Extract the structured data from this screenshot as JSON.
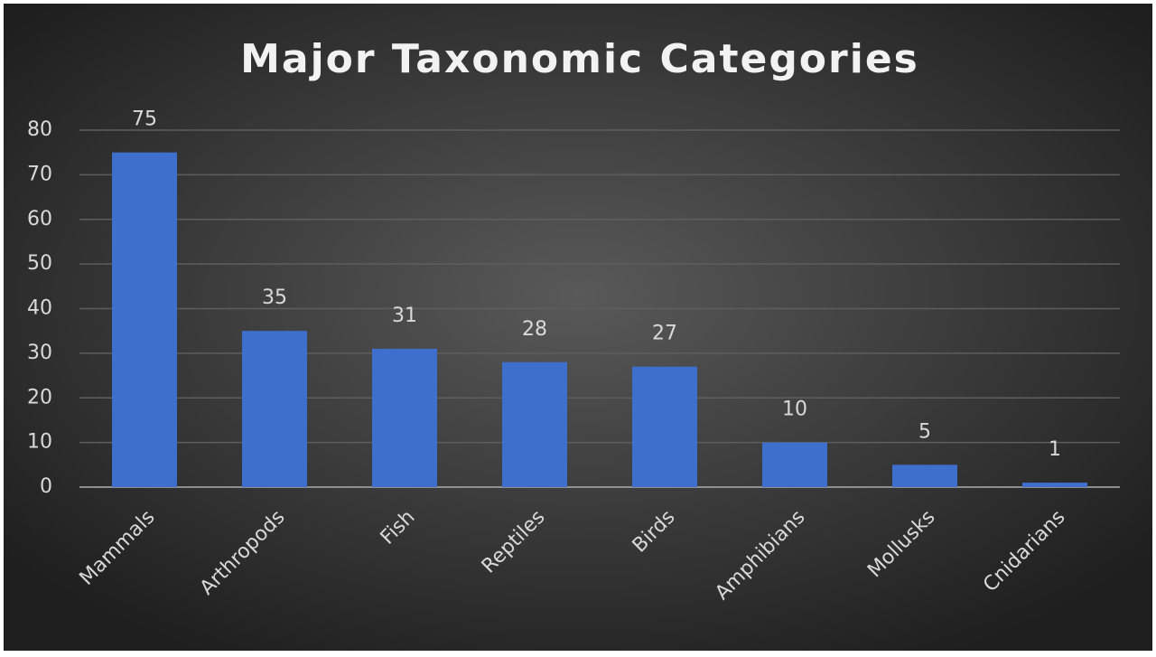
{
  "chart_data": {
    "type": "bar",
    "title": "Major Taxonomic Categories",
    "categories": [
      "Mammals",
      "Arthropods",
      "Fish",
      "Reptiles",
      "Birds",
      "Amphibians",
      "Mollusks",
      "Cnidarians"
    ],
    "values": [
      75,
      35,
      31,
      28,
      27,
      10,
      5,
      1
    ],
    "color": "#3f6fcc",
    "ylim": [
      0,
      80
    ],
    "yticks": [
      0,
      10,
      20,
      30,
      40,
      50,
      60,
      70,
      80
    ],
    "grid": true,
    "data_labels": true
  }
}
